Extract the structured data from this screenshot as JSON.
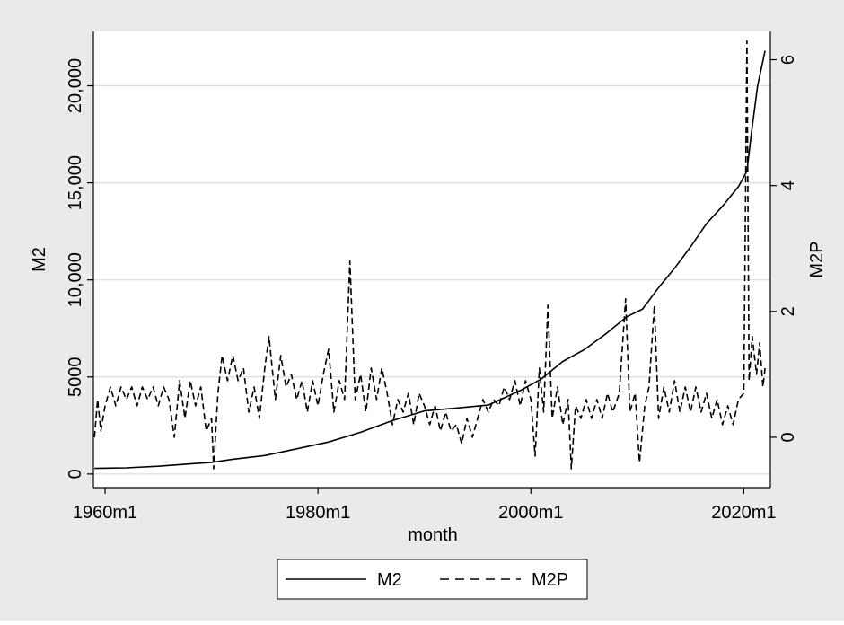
{
  "chart_data": {
    "type": "line",
    "title": "",
    "xlabel": "month",
    "x_ticks": [
      "1960m1",
      "1980m1",
      "2000m1",
      "2020m1"
    ],
    "x_range": [
      1958.9,
      2022.5
    ],
    "y_left": {
      "label": "M2",
      "range": [
        -700,
        22800
      ],
      "ticks": [
        "0",
        "5000",
        "10,000",
        "15,000",
        "20,000"
      ]
    },
    "y_right": {
      "label": "M2P",
      "range": [
        -0.8,
        6.45
      ],
      "ticks": [
        "0",
        "2",
        "4",
        "6"
      ]
    },
    "grid": true,
    "legend_position": "bottom",
    "colors": {
      "outer_background": "#eaeaea",
      "plot_background": "#ffffff",
      "gridline": "#dcdcdc",
      "series": "#000000"
    },
    "series": [
      {
        "name": "M2",
        "axis": "left",
        "style": "solid",
        "points": [
          [
            1959.0,
            290
          ],
          [
            1962.0,
            320
          ],
          [
            1965.0,
            400
          ],
          [
            1968.0,
            520
          ],
          [
            1970.0,
            600
          ],
          [
            1972.0,
            760
          ],
          [
            1975.0,
            950
          ],
          [
            1978.0,
            1300
          ],
          [
            1981.0,
            1650
          ],
          [
            1984.0,
            2150
          ],
          [
            1987.0,
            2750
          ],
          [
            1990.0,
            3250
          ],
          [
            1993.0,
            3400
          ],
          [
            1996.0,
            3550
          ],
          [
            1999.0,
            4300
          ],
          [
            2001.0,
            4900
          ],
          [
            2003.0,
            5800
          ],
          [
            2005.0,
            6400
          ],
          [
            2007.0,
            7200
          ],
          [
            2009.0,
            8100
          ],
          [
            2010.5,
            8500
          ],
          [
            2012.0,
            9600
          ],
          [
            2013.5,
            10600
          ],
          [
            2015.0,
            11700
          ],
          [
            2016.5,
            12900
          ],
          [
            2018.0,
            13800
          ],
          [
            2019.5,
            14800
          ],
          [
            2020.3,
            15600
          ],
          [
            2020.7,
            17500
          ],
          [
            2021.3,
            20000
          ],
          [
            2022.0,
            21800
          ]
        ]
      },
      {
        "name": "M2P",
        "axis": "right",
        "style": "dashed",
        "points": [
          [
            1959.0,
            0.0
          ],
          [
            1959.3,
            0.6
          ],
          [
            1959.6,
            0.1
          ],
          [
            1960.0,
            0.5
          ],
          [
            1960.5,
            0.8
          ],
          [
            1961.0,
            0.5
          ],
          [
            1961.5,
            0.8
          ],
          [
            1962.0,
            0.6
          ],
          [
            1962.5,
            0.8
          ],
          [
            1963.0,
            0.5
          ],
          [
            1963.5,
            0.8
          ],
          [
            1964.0,
            0.6
          ],
          [
            1964.5,
            0.8
          ],
          [
            1965.0,
            0.5
          ],
          [
            1965.5,
            0.8
          ],
          [
            1966.0,
            0.6
          ],
          [
            1966.5,
            0.0
          ],
          [
            1967.0,
            0.9
          ],
          [
            1967.5,
            0.3
          ],
          [
            1968.0,
            0.9
          ],
          [
            1968.5,
            0.5
          ],
          [
            1969.0,
            0.8
          ],
          [
            1969.5,
            0.1
          ],
          [
            1970.0,
            0.3
          ],
          [
            1970.2,
            -0.5
          ],
          [
            1970.6,
            0.7
          ],
          [
            1971.0,
            1.3
          ],
          [
            1971.5,
            0.9
          ],
          [
            1972.0,
            1.3
          ],
          [
            1972.5,
            0.9
          ],
          [
            1973.0,
            1.1
          ],
          [
            1973.5,
            0.4
          ],
          [
            1974.0,
            0.8
          ],
          [
            1974.5,
            0.3
          ],
          [
            1975.0,
            1.1
          ],
          [
            1975.4,
            1.6
          ],
          [
            1976.0,
            0.6
          ],
          [
            1976.5,
            1.3
          ],
          [
            1977.0,
            0.8
          ],
          [
            1977.5,
            1.0
          ],
          [
            1978.0,
            0.6
          ],
          [
            1978.5,
            0.9
          ],
          [
            1979.0,
            0.4
          ],
          [
            1979.5,
            0.9
          ],
          [
            1980.0,
            0.5
          ],
          [
            1980.5,
            1.0
          ],
          [
            1981.0,
            1.4
          ],
          [
            1981.5,
            0.4
          ],
          [
            1982.0,
            0.9
          ],
          [
            1982.5,
            0.6
          ],
          [
            1983.0,
            2.8
          ],
          [
            1983.5,
            0.6
          ],
          [
            1984.0,
            1.0
          ],
          [
            1984.5,
            0.4
          ],
          [
            1985.0,
            1.1
          ],
          [
            1985.5,
            0.6
          ],
          [
            1986.0,
            1.1
          ],
          [
            1986.5,
            0.7
          ],
          [
            1987.0,
            0.2
          ],
          [
            1987.5,
            0.6
          ],
          [
            1988.0,
            0.4
          ],
          [
            1988.5,
            0.7
          ],
          [
            1989.0,
            0.2
          ],
          [
            1989.5,
            0.7
          ],
          [
            1990.0,
            0.5
          ],
          [
            1990.5,
            0.2
          ],
          [
            1991.0,
            0.5
          ],
          [
            1991.5,
            0.1
          ],
          [
            1992.0,
            0.4
          ],
          [
            1992.5,
            0.1
          ],
          [
            1993.0,
            0.2
          ],
          [
            1993.5,
            -0.1
          ],
          [
            1994.0,
            0.3
          ],
          [
            1994.5,
            0.0
          ],
          [
            1995.0,
            0.3
          ],
          [
            1995.5,
            0.6
          ],
          [
            1996.0,
            0.4
          ],
          [
            1996.5,
            0.6
          ],
          [
            1997.0,
            0.5
          ],
          [
            1997.5,
            0.8
          ],
          [
            1998.0,
            0.6
          ],
          [
            1998.5,
            0.9
          ],
          [
            1999.0,
            0.5
          ],
          [
            1999.5,
            0.9
          ],
          [
            2000.0,
            0.6
          ],
          [
            2000.4,
            -0.3
          ],
          [
            2000.8,
            1.1
          ],
          [
            2001.2,
            0.4
          ],
          [
            2001.6,
            2.1
          ],
          [
            2002.0,
            0.3
          ],
          [
            2002.5,
            0.8
          ],
          [
            2003.0,
            0.2
          ],
          [
            2003.5,
            0.6
          ],
          [
            2003.8,
            -0.5
          ],
          [
            2004.2,
            0.5
          ],
          [
            2004.7,
            0.3
          ],
          [
            2005.2,
            0.6
          ],
          [
            2005.7,
            0.3
          ],
          [
            2006.2,
            0.6
          ],
          [
            2006.7,
            0.3
          ],
          [
            2007.2,
            0.7
          ],
          [
            2007.7,
            0.4
          ],
          [
            2008.3,
            0.7
          ],
          [
            2008.9,
            2.2
          ],
          [
            2009.3,
            0.4
          ],
          [
            2009.8,
            0.7
          ],
          [
            2010.2,
            -0.4
          ],
          [
            2010.7,
            0.5
          ],
          [
            2011.1,
            0.8
          ],
          [
            2011.6,
            2.1
          ],
          [
            2012.0,
            0.3
          ],
          [
            2012.5,
            0.8
          ],
          [
            2013.0,
            0.4
          ],
          [
            2013.5,
            0.9
          ],
          [
            2014.0,
            0.4
          ],
          [
            2014.5,
            0.8
          ],
          [
            2015.0,
            0.4
          ],
          [
            2015.5,
            0.8
          ],
          [
            2016.0,
            0.4
          ],
          [
            2016.5,
            0.7
          ],
          [
            2017.0,
            0.3
          ],
          [
            2017.5,
            0.6
          ],
          [
            2018.0,
            0.2
          ],
          [
            2018.5,
            0.5
          ],
          [
            2019.0,
            0.2
          ],
          [
            2019.5,
            0.6
          ],
          [
            2020.0,
            0.7
          ],
          [
            2020.3,
            6.3
          ],
          [
            2020.5,
            0.9
          ],
          [
            2020.8,
            1.6
          ],
          [
            2021.2,
            1.0
          ],
          [
            2021.5,
            1.5
          ],
          [
            2021.8,
            0.8
          ],
          [
            2022.0,
            1.1
          ]
        ]
      }
    ]
  }
}
